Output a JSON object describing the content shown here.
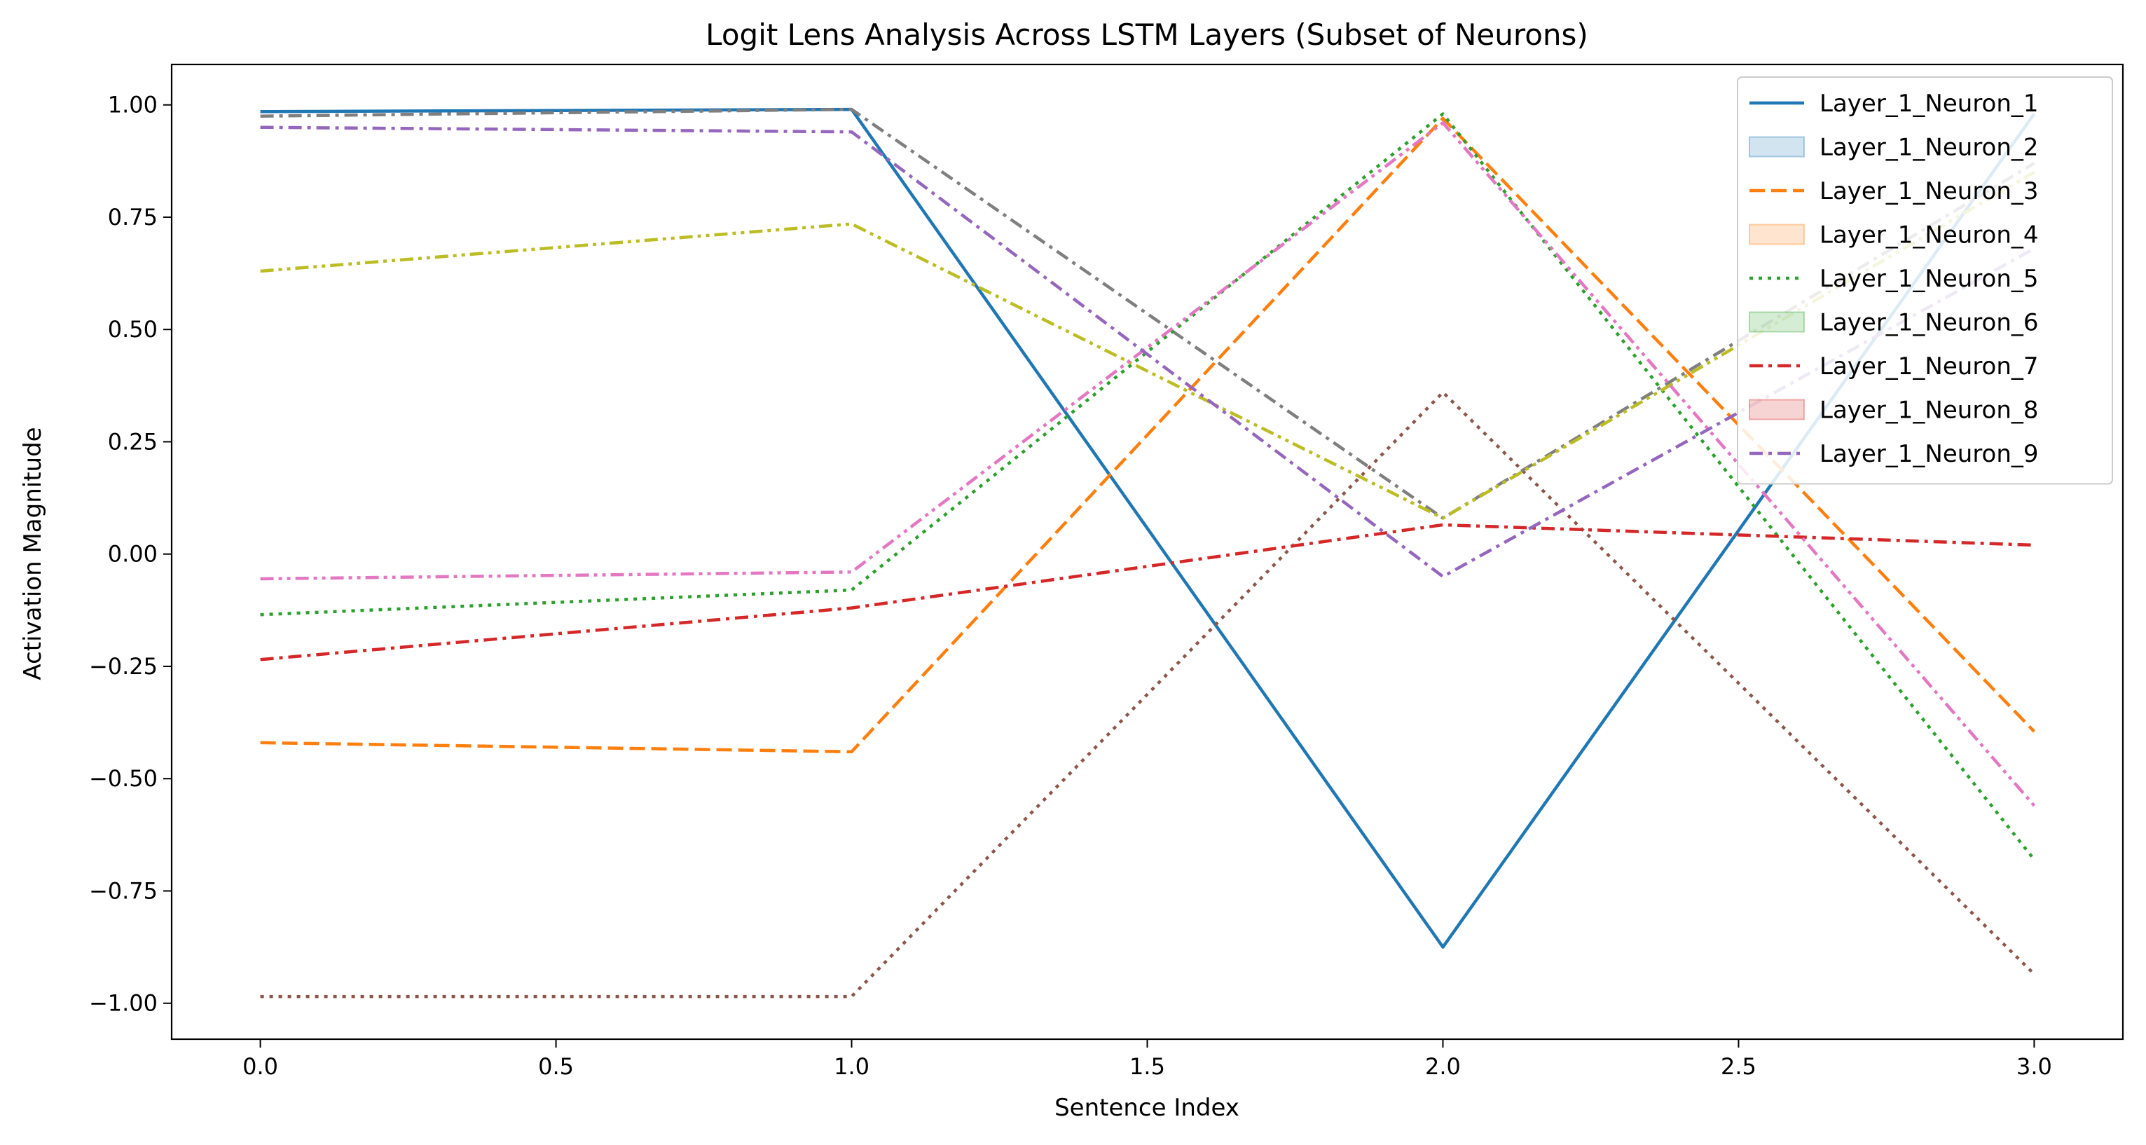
{
  "chart_data": {
    "type": "line",
    "title": "Logit Lens Analysis Across LSTM Layers (Subset of Neurons)",
    "xlabel": "Sentence Index",
    "ylabel": "Activation Magnitude",
    "xlim": [
      -0.15,
      3.15
    ],
    "ylim": [
      -1.08,
      1.09
    ],
    "x": [
      0,
      1,
      2,
      3
    ],
    "xticks": [
      0.0,
      0.5,
      1.0,
      1.5,
      2.0,
      2.5,
      3.0
    ],
    "xtick_labels": [
      "0.0",
      "0.5",
      "1.0",
      "1.5",
      "2.0",
      "2.5",
      "3.0"
    ],
    "yticks": [
      -1.0,
      -0.75,
      -0.5,
      -0.25,
      0.0,
      0.25,
      0.5,
      0.75,
      1.0
    ],
    "ytick_labels": [
      "−1.00",
      "−0.75",
      "−0.50",
      "−0.25",
      "0.00",
      "0.25",
      "0.50",
      "0.75",
      "1.00"
    ],
    "grid": false,
    "legend_position": "top-right",
    "series": [
      {
        "name": "Layer_1_Neuron_1",
        "values": [
          0.985,
          0.99,
          -0.875,
          0.98
        ],
        "color": "#1f77b4",
        "dash": "solid"
      },
      {
        "name": "",
        "values": [
          -0.985,
          -0.985,
          0.36,
          -0.935
        ],
        "color": "#8c564b",
        "dash": "dotted"
      },
      {
        "name": "Layer_1_Neuron_3",
        "values": [
          -0.42,
          -0.44,
          0.97,
          -0.395
        ],
        "color": "#ff7f0e",
        "dash": "dashed"
      },
      {
        "name": "",
        "values": [
          0.975,
          0.99,
          0.08,
          0.87
        ],
        "color": "#7f7f7f",
        "dash": "dashdot"
      },
      {
        "name": "Layer_1_Neuron_5",
        "values": [
          -0.135,
          -0.08,
          0.98,
          -0.68
        ],
        "color": "#2ca02c",
        "dash": "dotted"
      },
      {
        "name": "",
        "values": [
          0.63,
          0.735,
          0.08,
          0.85
        ],
        "color": "#bcbd22",
        "dash": "dashdotdot"
      },
      {
        "name": "Layer_1_Neuron_7",
        "values": [
          -0.235,
          -0.12,
          0.065,
          0.02
        ],
        "color": "#d62728",
        "dash": "dashdot"
      },
      {
        "name": "",
        "values": [
          -0.055,
          -0.04,
          0.96,
          -0.56
        ],
        "color": "#e377c2",
        "dash": "dashdotdot"
      },
      {
        "name": "Layer_1_Neuron_9",
        "values": [
          0.95,
          0.94,
          -0.05,
          0.68
        ],
        "color": "#9467bd",
        "dash": "dashdot"
      }
    ],
    "legend_entries": [
      {
        "label": "Layer_1_Neuron_1",
        "kind": "line",
        "color": "#1f77b4",
        "dash": "solid"
      },
      {
        "label": "Layer_1_Neuron_2",
        "kind": "patch",
        "color": "#1f77b4"
      },
      {
        "label": "Layer_1_Neuron_3",
        "kind": "line",
        "color": "#ff7f0e",
        "dash": "dashed"
      },
      {
        "label": "Layer_1_Neuron_4",
        "kind": "patch",
        "color": "#ff7f0e"
      },
      {
        "label": "Layer_1_Neuron_5",
        "kind": "line",
        "color": "#2ca02c",
        "dash": "dotted"
      },
      {
        "label": "Layer_1_Neuron_6",
        "kind": "patch",
        "color": "#2ca02c"
      },
      {
        "label": "Layer_1_Neuron_7",
        "kind": "line",
        "color": "#d62728",
        "dash": "dashdot"
      },
      {
        "label": "Layer_1_Neuron_8",
        "kind": "patch",
        "color": "#d62728"
      },
      {
        "label": "Layer_1_Neuron_9",
        "kind": "line",
        "color": "#9467bd",
        "dash": "dashdot"
      }
    ]
  }
}
